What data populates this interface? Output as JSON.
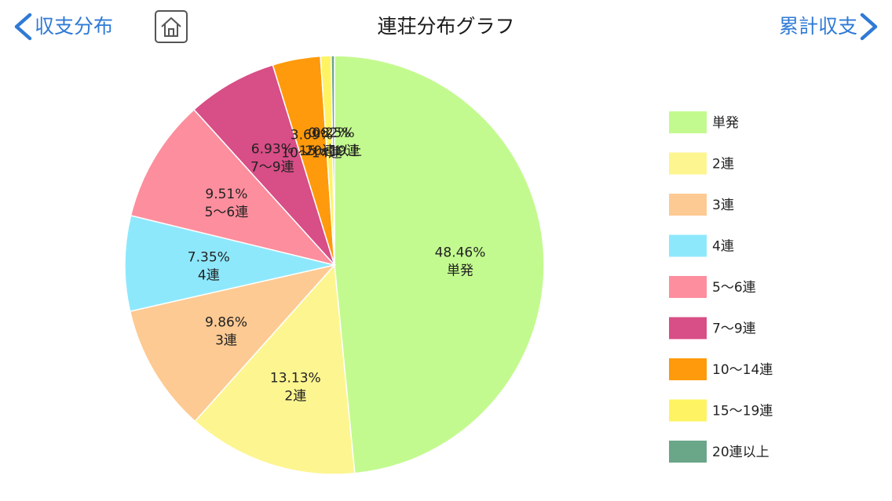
{
  "nav": {
    "back_label": "収支分布",
    "forward_label": "累計収支",
    "title": "連荘分布グラフ"
  },
  "chart_data": {
    "type": "pie",
    "title": "連荘分布グラフ",
    "start": "top",
    "direction": "clockwise",
    "legend_position": "right",
    "slices": [
      {
        "label": "単発",
        "percent_text": "48.46%",
        "value": 48.46,
        "color": "#c3fa8f"
      },
      {
        "label": "2連",
        "percent_text": "13.13%",
        "value": 13.13,
        "color": "#fdf590"
      },
      {
        "label": "3連",
        "percent_text": "9.86%",
        "value": 9.86,
        "color": "#fdca93"
      },
      {
        "label": "4連",
        "percent_text": "7.35%",
        "value": 7.35,
        "color": "#8ee8fc"
      },
      {
        "label": "5～6連",
        "percent_text": "9.51%",
        "value": 9.51,
        "color": "#fd8e9d"
      },
      {
        "label": "7～9連",
        "percent_text": "6.93%",
        "value": 6.93,
        "color": "#d84e86"
      },
      {
        "label": "10～14連",
        "percent_text": "3.69%",
        "value": 3.69,
        "color": "#fe9a0b"
      },
      {
        "label": "15～19連",
        "percent_text": "0.82%",
        "value": 0.82,
        "color": "#fef463"
      },
      {
        "label": "20連以上",
        "percent_text": "0.25%",
        "value": 0.25,
        "color": "#6aa688"
      }
    ]
  }
}
